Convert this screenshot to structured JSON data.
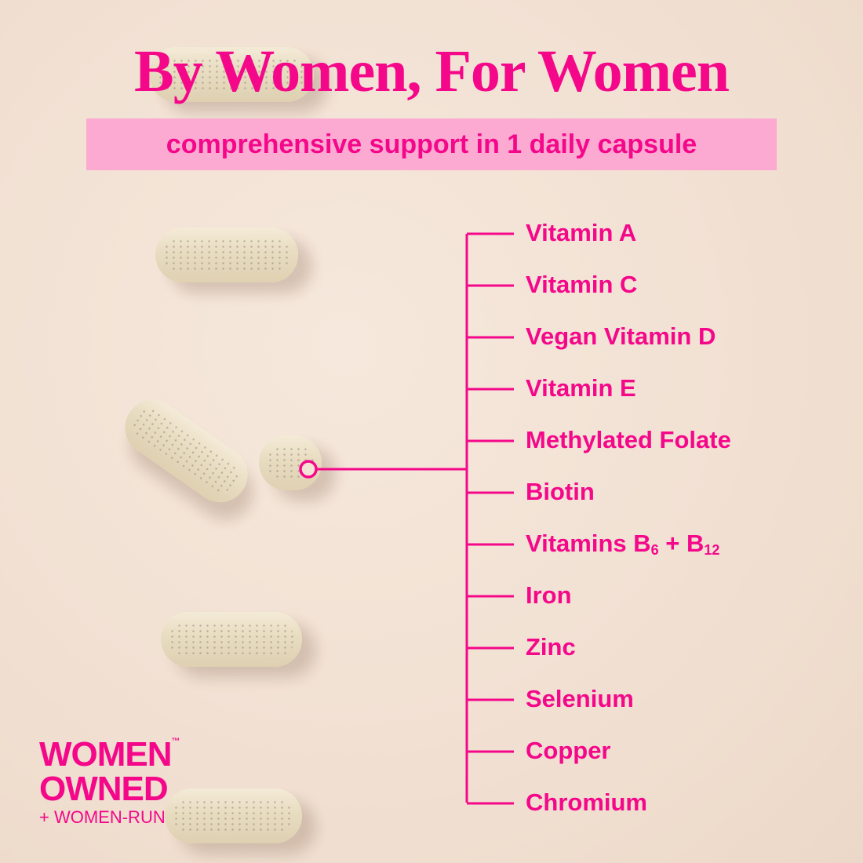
{
  "headline": "By Women, For Women",
  "subheadline": "comprehensive support in 1 daily capsule",
  "ingredients": [
    "Vitamin A",
    "Vitamin C",
    "Vegan Vitamin D",
    "Vitamin E",
    "Methylated Folate",
    "Biotin",
    "Iron",
    "Zinc",
    "Selenium",
    "Copper",
    "Chromium"
  ],
  "vitamins_b": {
    "prefix": "Vitamins B",
    "sub1": "6",
    "mid": " + B",
    "sub2": "12"
  },
  "logo": {
    "line1": "WOMEN",
    "line2": "OWNED",
    "line3": "+ WOMEN-RUN",
    "tm": "™"
  },
  "colors": {
    "accent": "#f5078a",
    "band": "#fcaad2",
    "background": "#f2e3d6"
  }
}
